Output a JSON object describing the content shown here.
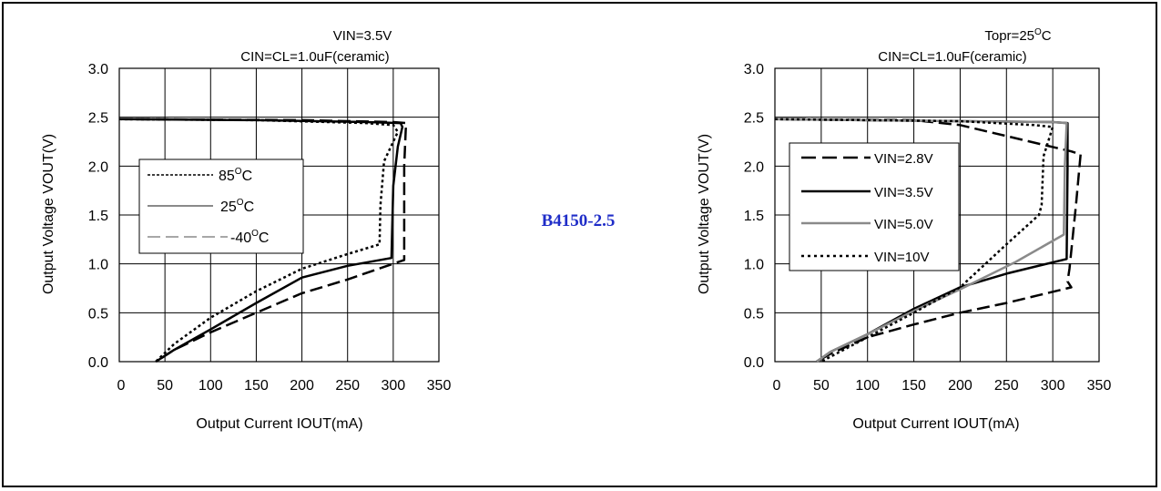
{
  "part_number": "B4150-2.5",
  "charts": [
    {
      "id": "left",
      "condition_line1": "VIN=3.5V",
      "condition_line2": "CIN=CL=1.0uF(ceramic)",
      "xlabel": "Output Current IOUT(mA)",
      "ylabel": "Output Voltage VOUT(V)",
      "legend": [
        {
          "text": "85",
          "unit": "C",
          "sup": "O"
        },
        {
          "text": "25",
          "unit": "C",
          "sup": "O"
        },
        {
          "text": "-40",
          "unit": "C",
          "sup": "O"
        }
      ]
    },
    {
      "id": "right",
      "condition_line1": "Topr=25",
      "condition_line1_unit": "C",
      "condition_line1_sup": "O",
      "condition_line2": "CIN=CL=1.0uF(ceramic)",
      "xlabel": "Output Current IOUT(mA)",
      "ylabel": "Output Voltage VOUT(V)",
      "legend": [
        {
          "text": "VIN=2.8V"
        },
        {
          "text": "VIN=3.5V"
        },
        {
          "text": "VIN=5.0V"
        },
        {
          "text": "VIN=10V"
        }
      ]
    }
  ],
  "chart_data": [
    {
      "type": "line",
      "xlim": [
        0,
        350
      ],
      "ylim": [
        0,
        3.0
      ],
      "xticks": [
        "0",
        "50",
        "100",
        "150",
        "200",
        "250",
        "300",
        "350"
      ],
      "yticks": [
        "0.0",
        "0.5",
        "1.0",
        "1.5",
        "2.0",
        "2.5",
        "3.0"
      ],
      "grid": true,
      "legend_position": "left",
      "series": [
        {
          "name": "85°C",
          "style": "dotted",
          "color": "#000000",
          "points": [
            [
              0,
              2.48
            ],
            [
              150,
              2.47
            ],
            [
              270,
              2.44
            ],
            [
              300,
              2.42
            ],
            [
              305,
              2.35
            ],
            [
              290,
              2.05
            ],
            [
              286,
              1.6
            ],
            [
              285,
              1.2
            ],
            [
              250,
              1.1
            ],
            [
              200,
              0.95
            ],
            [
              150,
              0.72
            ],
            [
              100,
              0.45
            ],
            [
              60,
              0.18
            ],
            [
              40,
              0.0
            ]
          ]
        },
        {
          "name": "25°C",
          "style": "solid",
          "color": "#000000",
          "points": [
            [
              0,
              2.48
            ],
            [
              150,
              2.47
            ],
            [
              270,
              2.45
            ],
            [
              308,
              2.44
            ],
            [
              310,
              2.4
            ],
            [
              305,
              2.2
            ],
            [
              300,
              1.8
            ],
            [
              298,
              1.06
            ],
            [
              250,
              0.98
            ],
            [
              200,
              0.86
            ],
            [
              150,
              0.6
            ],
            [
              100,
              0.33
            ],
            [
              60,
              0.12
            ],
            [
              40,
              0.0
            ]
          ]
        },
        {
          "name": "-40°C",
          "style": "dashed",
          "color": "#000000",
          "points": [
            [
              0,
              2.48
            ],
            [
              200,
              2.47
            ],
            [
              300,
              2.45
            ],
            [
              314,
              2.44
            ],
            [
              312,
              2.0
            ],
            [
              312,
              1.04
            ],
            [
              250,
              0.84
            ],
            [
              200,
              0.7
            ],
            [
              150,
              0.5
            ],
            [
              100,
              0.3
            ],
            [
              60,
              0.12
            ],
            [
              40,
              0.0
            ]
          ]
        }
      ]
    },
    {
      "type": "line",
      "xlim": [
        0,
        350
      ],
      "ylim": [
        0,
        3.0
      ],
      "xticks": [
        "0",
        "50",
        "100",
        "150",
        "200",
        "250",
        "300",
        "350"
      ],
      "yticks": [
        "0.0",
        "0.5",
        "1.0",
        "1.5",
        "2.0",
        "2.5",
        "3.0"
      ],
      "grid": true,
      "legend_position": "left",
      "series": [
        {
          "name": "VIN=2.8V",
          "style": "dashed",
          "color": "#000000",
          "points": [
            [
              0,
              2.48
            ],
            [
              150,
              2.47
            ],
            [
              200,
              2.42
            ],
            [
              320,
              2.15
            ],
            [
              330,
              2.12
            ],
            [
              325,
              1.6
            ],
            [
              318,
              0.95
            ],
            [
              316,
              0.82
            ],
            [
              320,
              0.76
            ],
            [
              250,
              0.6
            ],
            [
              200,
              0.5
            ],
            [
              150,
              0.38
            ],
            [
              100,
              0.25
            ],
            [
              60,
              0.08
            ],
            [
              45,
              0.0
            ]
          ]
        },
        {
          "name": "VIN=3.5V",
          "style": "solid",
          "color": "#000000",
          "points": [
            [
              0,
              2.48
            ],
            [
              200,
              2.46
            ],
            [
              300,
              2.45
            ],
            [
              316,
              2.44
            ],
            [
              316,
              2.0
            ],
            [
              315,
              1.05
            ],
            [
              250,
              0.9
            ],
            [
              200,
              0.76
            ],
            [
              150,
              0.54
            ],
            [
              100,
              0.28
            ],
            [
              60,
              0.1
            ],
            [
              45,
              0.0
            ]
          ]
        },
        {
          "name": "VIN=5.0V",
          "style": "solid",
          "color": "#8a8a8a",
          "points": [
            [
              0,
              2.48
            ],
            [
              200,
              2.46
            ],
            [
              300,
              2.45
            ],
            [
              315,
              2.44
            ],
            [
              313,
              2.0
            ],
            [
              312,
              1.3
            ],
            [
              260,
              1.02
            ],
            [
              200,
              0.74
            ],
            [
              150,
              0.52
            ],
            [
              100,
              0.28
            ],
            [
              60,
              0.1
            ],
            [
              45,
              0.0
            ]
          ]
        },
        {
          "name": "VIN=10V",
          "style": "dotted",
          "color": "#000000",
          "points": [
            [
              0,
              2.48
            ],
            [
              200,
              2.46
            ],
            [
              280,
              2.42
            ],
            [
              300,
              2.4
            ],
            [
              290,
              2.1
            ],
            [
              288,
              1.6
            ],
            [
              285,
              1.5
            ],
            [
              250,
              1.2
            ],
            [
              200,
              0.76
            ],
            [
              150,
              0.5
            ],
            [
              100,
              0.25
            ],
            [
              60,
              0.05
            ],
            [
              50,
              0.0
            ]
          ]
        }
      ]
    }
  ]
}
